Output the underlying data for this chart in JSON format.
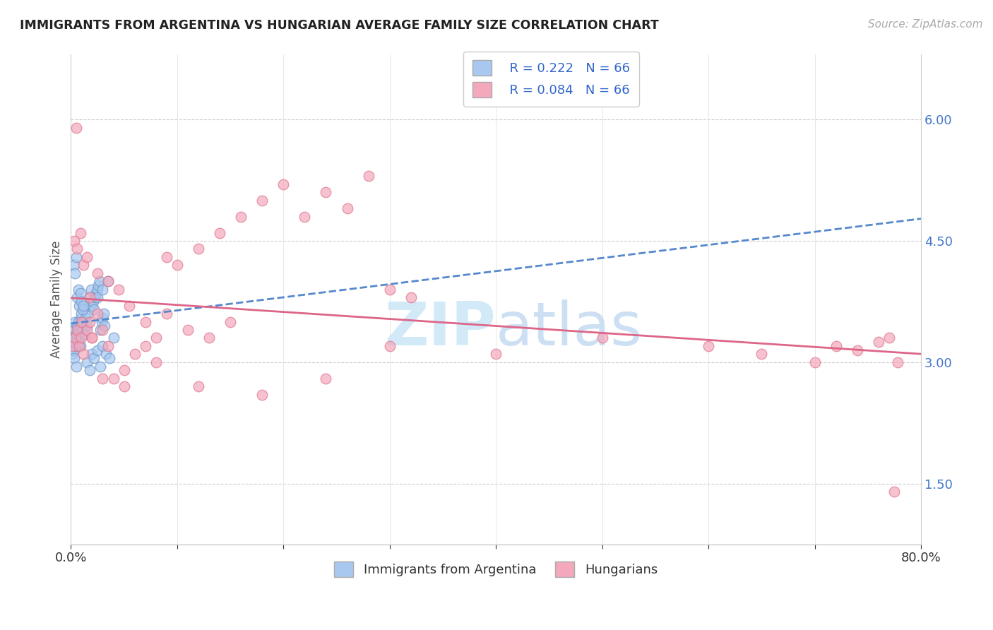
{
  "title": "IMMIGRANTS FROM ARGENTINA VS HUNGARIAN AVERAGE FAMILY SIZE CORRELATION CHART",
  "source": "Source: ZipAtlas.com",
  "ylabel": "Average Family Size",
  "xmin": 0.0,
  "xmax": 0.8,
  "ymin": 0.75,
  "ymax": 6.8,
  "yticks": [
    1.5,
    3.0,
    4.5,
    6.0
  ],
  "xticks": [
    0.0,
    0.1,
    0.2,
    0.3,
    0.4,
    0.5,
    0.6,
    0.7,
    0.8
  ],
  "legend_blue_R": "R = 0.222",
  "legend_blue_N": "N = 66",
  "legend_pink_R": "R = 0.084",
  "legend_pink_N": "N = 66",
  "legend_label_blue": "Immigrants from Argentina",
  "legend_label_pink": "Hungarians",
  "blue_color": "#a8c8f0",
  "pink_color": "#f4a8bc",
  "blue_edge_color": "#7099c8",
  "pink_edge_color": "#e07890",
  "blue_line_color": "#5588cc",
  "pink_line_color": "#dd6688",
  "watermark_color": "#cde8f8",
  "blue_scatter_x": [
    0.001,
    0.002,
    0.002,
    0.003,
    0.003,
    0.003,
    0.004,
    0.004,
    0.005,
    0.005,
    0.005,
    0.006,
    0.006,
    0.007,
    0.007,
    0.008,
    0.008,
    0.009,
    0.009,
    0.01,
    0.01,
    0.011,
    0.012,
    0.013,
    0.014,
    0.015,
    0.016,
    0.017,
    0.018,
    0.019,
    0.02,
    0.021,
    0.022,
    0.023,
    0.024,
    0.025,
    0.026,
    0.027,
    0.028,
    0.029,
    0.03,
    0.031,
    0.032,
    0.003,
    0.004,
    0.005,
    0.006,
    0.007,
    0.008,
    0.009,
    0.01,
    0.011,
    0.012,
    0.015,
    0.018,
    0.02,
    0.022,
    0.025,
    0.028,
    0.03,
    0.033,
    0.036,
    0.04,
    0.025,
    0.03,
    0.035
  ],
  "blue_scatter_y": [
    3.2,
    3.1,
    3.3,
    3.15,
    3.25,
    3.05,
    3.4,
    3.5,
    3.2,
    3.35,
    2.95,
    3.3,
    3.45,
    3.25,
    3.5,
    3.4,
    3.3,
    3.2,
    3.45,
    3.55,
    3.6,
    3.4,
    3.5,
    3.35,
    3.55,
    3.45,
    3.6,
    3.7,
    3.8,
    3.9,
    3.7,
    3.75,
    3.65,
    3.8,
    3.85,
    3.9,
    3.95,
    4.0,
    3.4,
    3.5,
    3.55,
    3.6,
    3.45,
    4.2,
    4.1,
    4.3,
    3.8,
    3.9,
    3.7,
    3.85,
    3.75,
    3.65,
    3.7,
    3.0,
    2.9,
    3.1,
    3.05,
    3.15,
    2.95,
    3.2,
    3.1,
    3.05,
    3.3,
    3.8,
    3.9,
    4.0
  ],
  "pink_scatter_x": [
    0.002,
    0.004,
    0.006,
    0.008,
    0.01,
    0.012,
    0.015,
    0.018,
    0.02,
    0.025,
    0.03,
    0.035,
    0.04,
    0.05,
    0.06,
    0.07,
    0.08,
    0.09,
    0.1,
    0.12,
    0.14,
    0.16,
    0.18,
    0.2,
    0.22,
    0.24,
    0.26,
    0.28,
    0.3,
    0.32,
    0.003,
    0.006,
    0.009,
    0.012,
    0.015,
    0.018,
    0.025,
    0.035,
    0.045,
    0.055,
    0.07,
    0.09,
    0.11,
    0.13,
    0.15,
    0.005,
    0.01,
    0.02,
    0.03,
    0.05,
    0.08,
    0.12,
    0.18,
    0.24,
    0.3,
    0.4,
    0.5,
    0.6,
    0.65,
    0.7,
    0.72,
    0.74,
    0.76,
    0.77,
    0.775,
    0.778
  ],
  "pink_scatter_y": [
    3.2,
    3.3,
    3.4,
    3.2,
    3.3,
    3.1,
    3.4,
    3.5,
    3.3,
    3.6,
    3.4,
    3.2,
    2.8,
    2.7,
    3.1,
    3.2,
    3.3,
    4.3,
    4.2,
    4.4,
    4.6,
    4.8,
    5.0,
    5.2,
    4.8,
    5.1,
    4.9,
    5.3,
    3.9,
    3.8,
    4.5,
    4.4,
    4.6,
    4.2,
    4.3,
    3.8,
    4.1,
    4.0,
    3.9,
    3.7,
    3.5,
    3.6,
    3.4,
    3.3,
    3.5,
    5.9,
    3.5,
    3.3,
    2.8,
    2.9,
    3.0,
    2.7,
    2.6,
    2.8,
    3.2,
    3.1,
    3.3,
    3.2,
    3.1,
    3.0,
    3.2,
    3.15,
    3.25,
    3.3,
    1.4,
    3.0
  ]
}
